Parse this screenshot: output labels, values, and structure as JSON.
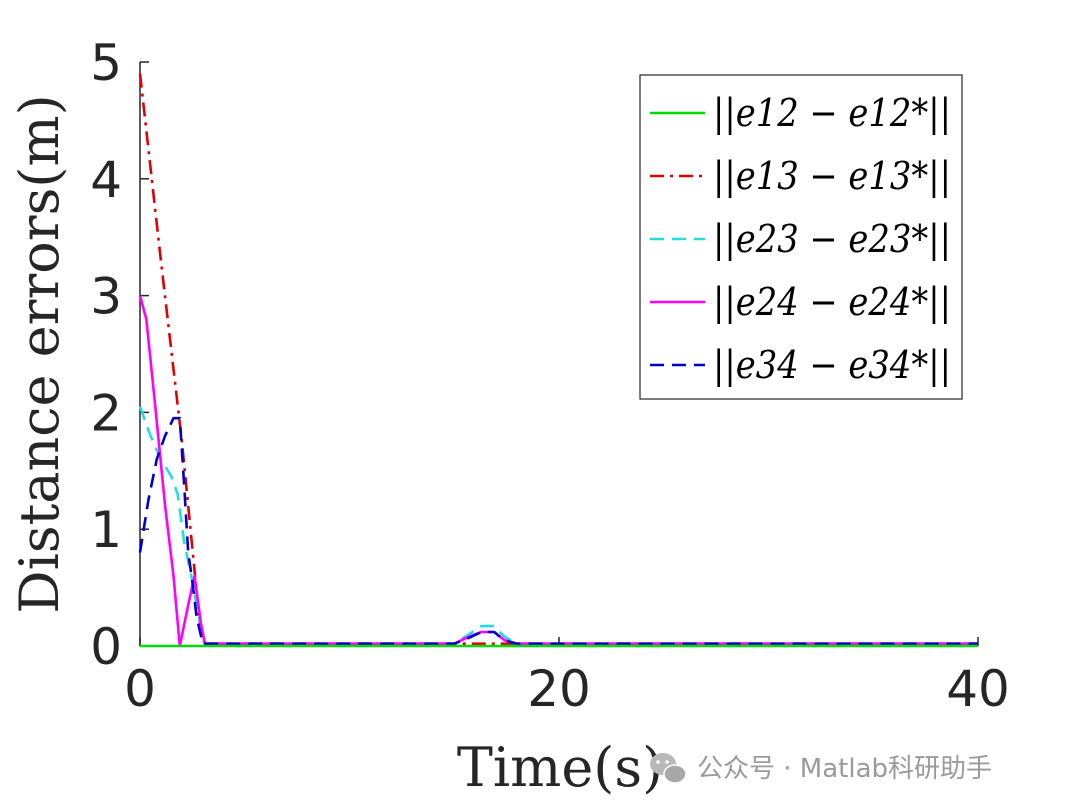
{
  "chart_data": {
    "type": "line",
    "xlabel": "Time(s)",
    "ylabel": "Distance errors(m)",
    "xlim": [
      0,
      40
    ],
    "ylim": [
      0,
      5
    ],
    "xticks": [
      "0",
      "20",
      "40"
    ],
    "yticks": [
      "0",
      "1",
      "2",
      "3",
      "4",
      "5"
    ],
    "grid": false,
    "legend_position": "top-right",
    "series": [
      {
        "name": "||e12 − e12*||",
        "color": "#00dd00",
        "dash": "solid",
        "x": [
          0,
          40
        ],
        "y": [
          0,
          0
        ]
      },
      {
        "name": "||e13 − e13*||",
        "color": "#e00000",
        "dash": "dashdot",
        "x": [
          0,
          1.0,
          2.0,
          2.6,
          2.9,
          3.1,
          40
        ],
        "y": [
          4.9,
          3.3,
          1.75,
          0.65,
          0.1,
          0.02,
          0.02
        ]
      },
      {
        "name": "||e23 − e23*||",
        "color": "#22dddd",
        "dash": "dashed",
        "x": [
          0,
          0.5,
          1.0,
          1.5,
          1.8,
          2.1,
          2.5,
          2.8,
          3.1,
          15.0,
          15.7,
          16.3,
          16.9,
          17.4,
          18.0,
          40
        ],
        "y": [
          2.05,
          1.8,
          1.6,
          1.45,
          1.3,
          0.9,
          0.55,
          0.25,
          0.02,
          0.02,
          0.1,
          0.17,
          0.17,
          0.08,
          0.02,
          0.02
        ]
      },
      {
        "name": "||e24 − e24*||",
        "color": "#ff00ff",
        "dash": "solid",
        "x": [
          0,
          0.3,
          0.7,
          1.2,
          1.6,
          1.9,
          2.3,
          2.6,
          2.9,
          3.1,
          15.0,
          15.7,
          16.3,
          16.9,
          17.4,
          18.0,
          40
        ],
        "y": [
          3.0,
          2.8,
          2.1,
          1.2,
          0.6,
          0.0,
          0.35,
          0.6,
          0.2,
          0.02,
          0.02,
          0.08,
          0.12,
          0.12,
          0.05,
          0.02,
          0.02
        ]
      },
      {
        "name": "||e34 − e34*||",
        "color": "#0000cc",
        "dash": "dashed",
        "x": [
          0,
          0.4,
          0.8,
          1.2,
          1.6,
          1.9,
          2.1,
          2.3,
          2.5,
          2.7,
          3.0,
          15.0,
          15.7,
          16.3,
          16.9,
          17.4,
          18.0,
          40
        ],
        "y": [
          0.8,
          1.25,
          1.6,
          1.8,
          1.95,
          1.95,
          1.4,
          0.8,
          0.55,
          0.25,
          0.02,
          0.02,
          0.07,
          0.12,
          0.12,
          0.05,
          0.02,
          0.02
        ]
      }
    ]
  },
  "watermark": {
    "icon": "wechat-icon",
    "text": "公众号 · Matlab科研助手"
  }
}
